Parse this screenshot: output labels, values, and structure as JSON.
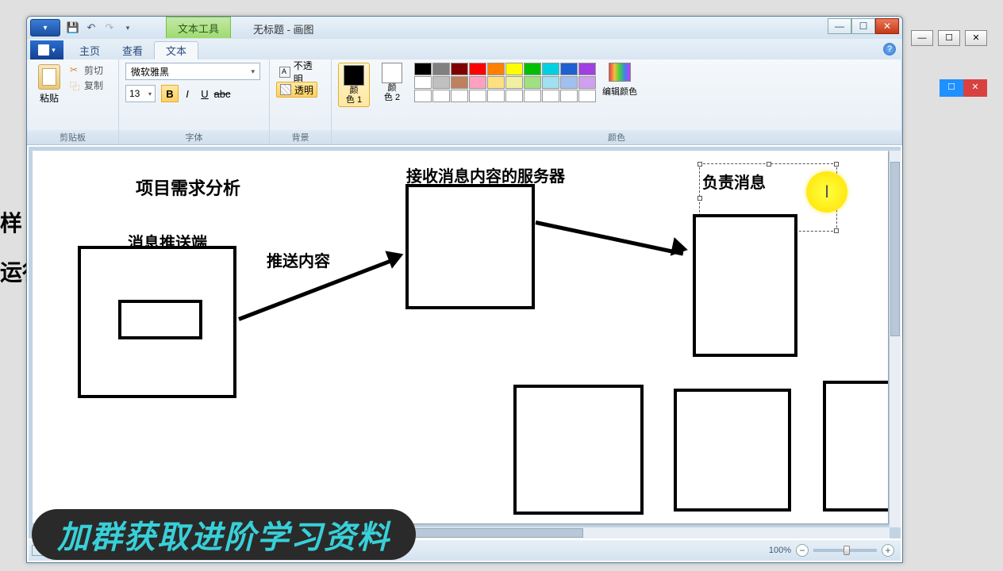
{
  "background": {
    "side_text_1": "样",
    "side_text_2": "运行"
  },
  "title_bar": {
    "context_tab": "文本工具",
    "window_title": "无标题 - 画图"
  },
  "tabs": {
    "home": "主页",
    "view": "查看",
    "text": "文本"
  },
  "ribbon": {
    "clipboard": {
      "paste": "粘贴",
      "cut": "剪切",
      "copy": "复制",
      "label": "剪贴板"
    },
    "font": {
      "family": "微软雅黑",
      "size": "13",
      "label": "字体"
    },
    "background": {
      "opaque": "不透明",
      "transparent": "透明",
      "label": "背景"
    },
    "colors": {
      "color1": "颜\n色 1",
      "color2": "颜\n色 2",
      "edit": "编辑颜色",
      "label": "颜色",
      "color1_hex": "#000000",
      "color2_hex": "#ffffff",
      "palette_top": [
        "#000000",
        "#808080",
        "#800000",
        "#ff0000",
        "#ff8000",
        "#ffff00",
        "#00c000",
        "#00d0e0",
        "#2060d0",
        "#a040e0"
      ],
      "palette_mid": [
        "#ffffff",
        "#c0c0c0",
        "#c08060",
        "#ffa0c0",
        "#ffe080",
        "#f0f0a0",
        "#a0e080",
        "#a0e0f0",
        "#a0c0f0",
        "#d0a0f0"
      ],
      "palette_bot": [
        "#ffffff",
        "#ffffff",
        "#ffffff",
        "#ffffff",
        "#ffffff",
        "#ffffff",
        "#ffffff",
        "#ffffff",
        "#ffffff",
        "#ffffff"
      ]
    }
  },
  "diagram": {
    "title": "项目需求分析",
    "sender_label": "消息推送端",
    "push_label": "推送内容",
    "server_label": "接收消息内容的服务器",
    "responsible_label": "负责消息",
    "text_cursor": "I"
  },
  "status": {
    "zoom": "100%"
  },
  "banner": "加群获取进阶学习资料"
}
